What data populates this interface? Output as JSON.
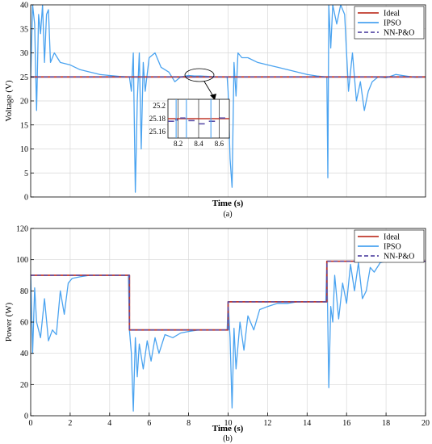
{
  "figure": {
    "colors": {
      "ideal": "#c0392b",
      "ipso": "#4aa3f0",
      "nnpo": "#5b4fa8",
      "grid": "#d8d8d8",
      "axis": "#000000"
    }
  },
  "chart_data": [
    {
      "type": "line",
      "subplot_label": "(a)",
      "xlabel": "Time (s)",
      "ylabel": "Voltage (V)",
      "xlim": [
        0,
        20
      ],
      "ylim": [
        0,
        40
      ],
      "yticks": [
        "0",
        "5",
        "10",
        "15",
        "20",
        "25",
        "30",
        "35",
        "40"
      ],
      "xticks": [],
      "grid": true,
      "legend_position": "top-right",
      "legend": [
        "Ideal",
        "IPSO",
        "NN-P&O"
      ],
      "series": [
        {
          "name": "Ideal",
          "x": [
            0,
            20
          ],
          "y": [
            25,
            25
          ]
        },
        {
          "name": "IPSO",
          "x": [
            0,
            0.1,
            0.2,
            0.3,
            0.4,
            0.5,
            0.6,
            0.7,
            0.8,
            0.9,
            1.0,
            1.2,
            1.5,
            2.0,
            2.5,
            3.0,
            3.5,
            4.0,
            4.5,
            4.95,
            5.0,
            5.1,
            5.2,
            5.3,
            5.4,
            5.5,
            5.6,
            5.7,
            5.8,
            6.0,
            6.3,
            6.6,
            7.0,
            7.3,
            7.6,
            8.0,
            8.3,
            8.6,
            9.0,
            9.5,
            9.95,
            10.0,
            10.1,
            10.2,
            10.3,
            10.4,
            10.5,
            10.7,
            11.0,
            11.5,
            12.0,
            12.5,
            13.0,
            13.5,
            14.0,
            14.5,
            14.95,
            15.0,
            15.05,
            15.1,
            15.2,
            15.3,
            15.5,
            15.7,
            15.9,
            16.1,
            16.3,
            16.5,
            16.7,
            16.9,
            17.1,
            17.3,
            17.6,
            18.0,
            18.5,
            19.0,
            19.5,
            20.0
          ],
          "y": [
            25,
            40,
            36,
            18,
            38,
            34,
            40,
            28,
            38,
            39,
            28,
            30,
            28,
            27.5,
            26.5,
            26,
            25.5,
            25.3,
            25.1,
            25,
            25,
            22,
            30,
            1,
            20,
            30,
            10,
            28,
            22,
            29,
            30,
            27,
            26,
            24,
            25,
            25.3,
            25.2,
            25.2,
            25.1,
            25,
            25,
            22,
            8,
            2,
            28,
            21,
            30,
            29,
            29,
            28,
            27.5,
            27,
            26.5,
            26,
            25.5,
            25.2,
            25,
            25,
            4,
            40,
            31,
            40,
            36,
            40,
            38,
            22,
            30,
            20,
            24,
            18,
            22,
            24,
            25,
            24.8,
            25.5,
            25.2,
            24.9,
            25
          ]
        },
        {
          "name": "NN-P&O",
          "x": [
            0,
            20
          ],
          "y": [
            25,
            25
          ]
        }
      ],
      "inset": {
        "xticks": [
          "8.2",
          "8.4",
          "8.6"
        ],
        "yticks": [
          "25.16",
          "25.18",
          "25.2"
        ],
        "xlim": [
          8.1,
          8.7
        ],
        "ylim": [
          25.15,
          25.21
        ]
      }
    },
    {
      "type": "line",
      "subplot_label": "(b)",
      "xlabel": "Time (s)",
      "ylabel": "Power (W)",
      "xlim": [
        0,
        20
      ],
      "ylim": [
        0,
        120
      ],
      "xticks": [
        "0",
        "2",
        "4",
        "6",
        "8",
        "10",
        "12",
        "14",
        "16",
        "18",
        "20"
      ],
      "yticks": [
        "0",
        "20",
        "40",
        "60",
        "80",
        "100",
        "120"
      ],
      "grid": true,
      "legend_position": "top-right",
      "legend": [
        "Ideal",
        "IPSO",
        "NN-P&O"
      ],
      "series": [
        {
          "name": "Ideal",
          "x": [
            0,
            5,
            5,
            10,
            10,
            15,
            15,
            20
          ],
          "y": [
            90,
            90,
            55,
            55,
            73,
            73,
            99,
            99
          ]
        },
        {
          "name": "IPSO",
          "x": [
            0,
            0.1,
            0.2,
            0.3,
            0.5,
            0.7,
            0.9,
            1.1,
            1.3,
            1.5,
            1.7,
            1.9,
            2.1,
            2.5,
            3.0,
            3.5,
            4.0,
            4.5,
            4.95,
            5.0,
            5.1,
            5.2,
            5.3,
            5.4,
            5.5,
            5.7,
            5.9,
            6.1,
            6.3,
            6.5,
            6.8,
            7.2,
            7.6,
            8.0,
            8.5,
            9.0,
            9.5,
            9.95,
            10.0,
            10.1,
            10.2,
            10.3,
            10.4,
            10.6,
            10.8,
            11.0,
            11.3,
            11.6,
            12.0,
            12.5,
            13.0,
            13.5,
            14.0,
            14.5,
            14.95,
            15.0,
            15.1,
            15.2,
            15.3,
            15.4,
            15.6,
            15.8,
            16.0,
            16.2,
            16.4,
            16.6,
            16.8,
            17.0,
            17.2,
            17.4,
            17.7,
            18.0,
            18.5,
            19.0,
            19.5,
            20.0
          ],
          "y": [
            90,
            40,
            82,
            60,
            50,
            75,
            48,
            55,
            52,
            80,
            65,
            85,
            88,
            89,
            90,
            90,
            90,
            90,
            90,
            55,
            40,
            3,
            50,
            25,
            46,
            30,
            48,
            35,
            50,
            40,
            52,
            50,
            53,
            54,
            55,
            55,
            55,
            55,
            73,
            50,
            5,
            56,
            30,
            60,
            42,
            64,
            55,
            68,
            70,
            72,
            72,
            73,
            73,
            73,
            73,
            99,
            18,
            70,
            60,
            90,
            62,
            85,
            72,
            97,
            80,
            98,
            75,
            80,
            95,
            92,
            98,
            99,
            99,
            99,
            99,
            99
          ]
        },
        {
          "name": "NN-P&O",
          "x": [
            0,
            5,
            5,
            10,
            10,
            15,
            15,
            20
          ],
          "y": [
            90,
            90,
            55,
            55,
            73,
            73,
            99,
            99
          ]
        }
      ]
    }
  ]
}
